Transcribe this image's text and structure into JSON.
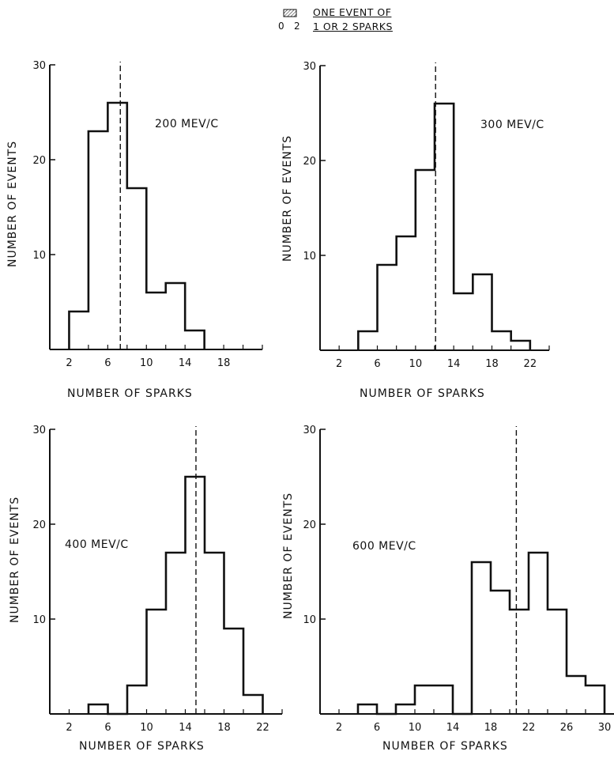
{
  "legend": {
    "scale_left": "0",
    "scale_right": "2",
    "line1": "ONE EVENT OF",
    "line2": "1 OR 2 SPARKS"
  },
  "chart_data": [
    {
      "type": "bar",
      "title": "200 MEV/C",
      "xlabel": "NUMBER OF SPARKS",
      "ylabel": "NUMBER OF EVENTS",
      "xlim": [
        0,
        22
      ],
      "ylim": [
        0,
        30
      ],
      "xticks": [
        2,
        6,
        10,
        14,
        18
      ],
      "yticks": [
        10,
        20,
        30
      ],
      "bin_edges": [
        2,
        4,
        6,
        8,
        10,
        12,
        14,
        16
      ],
      "values": [
        4,
        23,
        26,
        17,
        6,
        7,
        2
      ],
      "mean_line": 7.3
    },
    {
      "type": "bar",
      "title": "300 MEV/C",
      "xlabel": "NUMBER OF SPARKS",
      "ylabel": "NUMBER OF EVENTS",
      "xlim": [
        0,
        24
      ],
      "ylim": [
        0,
        30
      ],
      "xticks": [
        2,
        6,
        10,
        14,
        18,
        22
      ],
      "yticks": [
        10,
        20,
        30
      ],
      "bin_edges": [
        4,
        6,
        8,
        10,
        12,
        14,
        16,
        18,
        20,
        22
      ],
      "values": [
        2,
        9,
        12,
        19,
        26,
        6,
        8,
        2,
        1
      ],
      "mean_line": 12.1
    },
    {
      "type": "bar",
      "title": "400 MEV/C",
      "xlabel": "NUMBER OF SPARKS",
      "ylabel": "NUMBER OF EVENTS",
      "xlim": [
        0,
        24
      ],
      "ylim": [
        0,
        30
      ],
      "xticks": [
        2,
        6,
        10,
        14,
        18,
        22
      ],
      "yticks": [
        10,
        20,
        30
      ],
      "bin_edges": [
        4,
        6,
        8,
        10,
        12,
        14,
        16,
        18,
        20,
        22
      ],
      "values": [
        1,
        0,
        3,
        11,
        17,
        25,
        17,
        9,
        2
      ],
      "mean_line": 15.1
    },
    {
      "type": "bar",
      "title": "600 MEV/C",
      "xlabel": "NUMBER OF SPARKS",
      "ylabel": "NUMBER OF EVENTS",
      "xlim": [
        0,
        31
      ],
      "ylim": [
        0,
        30
      ],
      "xticks": [
        2,
        6,
        10,
        14,
        18,
        22,
        26,
        30
      ],
      "yticks": [
        10,
        20,
        30
      ],
      "bin_edges": [
        4,
        6,
        8,
        10,
        14,
        16,
        18,
        20,
        22,
        24,
        26,
        28,
        30
      ],
      "values": [
        1,
        0,
        1,
        3,
        0,
        16,
        13,
        11,
        17,
        11,
        4,
        3
      ],
      "mean_line": 20.7
    }
  ]
}
